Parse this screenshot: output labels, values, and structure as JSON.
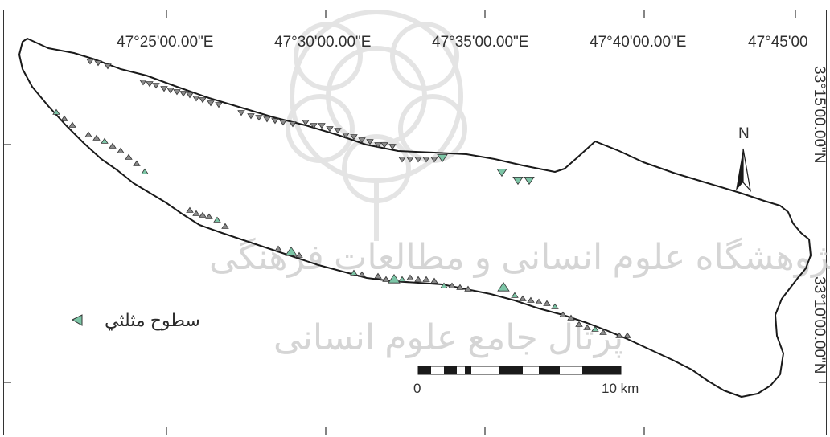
{
  "longitude_labels": [
    "47°25'00.00\"E",
    "47°30'00.00\"E",
    "47°35'00.00\"E",
    "47°40'00.00\"E",
    "47°45'00"
  ],
  "latitude_labels": [
    "33°15'00.00\"N",
    "33°10'00.00\"N"
  ],
  "north_arrow": {
    "letter": "N",
    "icon": "north-arrow-icon"
  },
  "legend": {
    "label": "سطوح مثلثي",
    "symbol_color": "#7cc5a6",
    "symbol": "triangle-marker-icon"
  },
  "scale_bar": {
    "start_label": "0",
    "end_label": "10 km"
  },
  "watermark": {
    "line1": "پژوهشگاه علوم انسانی و مطالعات فرهنگی",
    "line2": "پرتال جامع علوم انسانی"
  },
  "colors": {
    "frame": "#333333",
    "boundary": "#1a1a1a",
    "marker_fill": "#7cc5a6",
    "marker_dark": "#8a8a8a",
    "watermark": "#c8c8c8"
  }
}
